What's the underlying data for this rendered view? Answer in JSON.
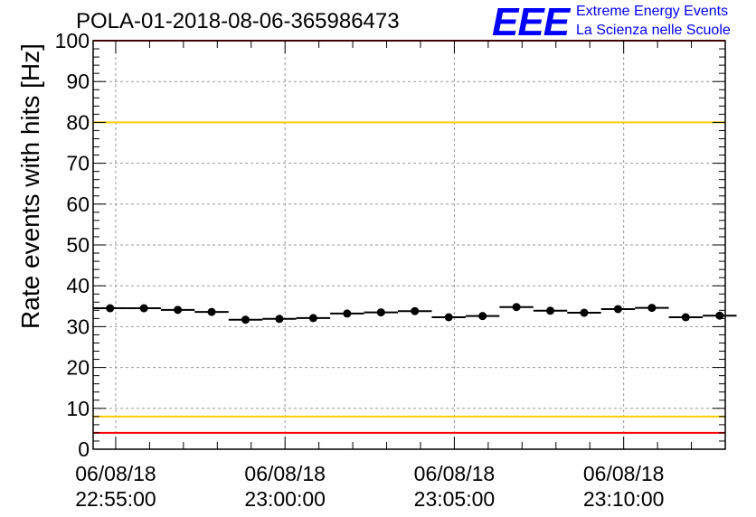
{
  "header": {
    "title": "POLA-01-2018-08-06-365986473",
    "logo_text": "EEE",
    "logo_line1": "Extreme Energy Events",
    "logo_line2": "La Scienza nelle Scuole"
  },
  "colors": {
    "logo": "#0000ff",
    "limit_red": "#ff0000",
    "limit_yellow": "#ffcc00",
    "grid": "#999999",
    "marker": "#000000"
  },
  "chart_data": {
    "type": "scatter",
    "title": "POLA-01-2018-08-06-365986473",
    "xlabel": "",
    "ylabel": "Rate events with hits [Hz]",
    "ylim": [
      0,
      100
    ],
    "xlim": [
      "2018-08-06 22:54:20",
      "2018-08-06 23:13:00"
    ],
    "grid": true,
    "y_ticks": [
      0,
      10,
      20,
      30,
      40,
      50,
      60,
      70,
      80,
      90,
      100
    ],
    "x_ticks": [
      {
        "t": "2018-08-06 22:55:00",
        "date": "06/08/18",
        "time": "22:55:00"
      },
      {
        "t": "2018-08-06 23:00:00",
        "date": "06/08/18",
        "time": "23:00:00"
      },
      {
        "t": "2018-08-06 23:05:00",
        "date": "06/08/18",
        "time": "23:05:00"
      },
      {
        "t": "2018-08-06 23:10:00",
        "date": "06/08/18",
        "time": "23:10:00"
      }
    ],
    "bin_width_seconds": 60,
    "points": [
      {
        "t": "2018-08-06 22:54:50",
        "y": 34.5
      },
      {
        "t": "2018-08-06 22:55:50",
        "y": 34.5
      },
      {
        "t": "2018-08-06 22:56:50",
        "y": 34.1
      },
      {
        "t": "2018-08-06 22:57:50",
        "y": 33.6
      },
      {
        "t": "2018-08-06 22:58:50",
        "y": 31.7
      },
      {
        "t": "2018-08-06 22:59:50",
        "y": 31.9
      },
      {
        "t": "2018-08-06 23:00:50",
        "y": 32.1
      },
      {
        "t": "2018-08-06 23:01:50",
        "y": 33.2
      },
      {
        "t": "2018-08-06 23:02:50",
        "y": 33.5
      },
      {
        "t": "2018-08-06 23:03:50",
        "y": 33.8
      },
      {
        "t": "2018-08-06 23:04:50",
        "y": 32.3
      },
      {
        "t": "2018-08-06 23:05:50",
        "y": 32.6
      },
      {
        "t": "2018-08-06 23:06:50",
        "y": 34.8
      },
      {
        "t": "2018-08-06 23:07:50",
        "y": 33.9
      },
      {
        "t": "2018-08-06 23:08:50",
        "y": 33.4
      },
      {
        "t": "2018-08-06 23:09:50",
        "y": 34.3
      },
      {
        "t": "2018-08-06 23:10:50",
        "y": 34.6
      },
      {
        "t": "2018-08-06 23:11:50",
        "y": 32.3
      },
      {
        "t": "2018-08-06 23:12:50",
        "y": 32.7
      }
    ],
    "reference_lines": [
      {
        "y": 100,
        "color": "#ff0000"
      },
      {
        "y": 80,
        "color": "#ffcc00"
      },
      {
        "y": 8,
        "color": "#ffcc00"
      },
      {
        "y": 4,
        "color": "#ff0000"
      }
    ]
  }
}
